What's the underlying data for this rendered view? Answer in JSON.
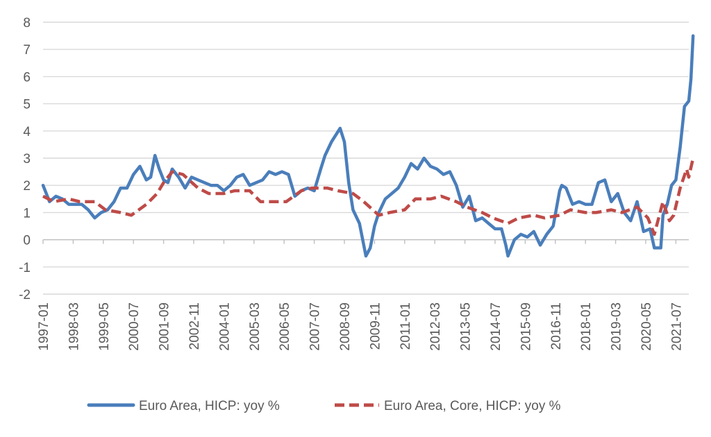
{
  "chart_data": {
    "type": "line",
    "ylim": [
      -2,
      8
    ],
    "yticks": [
      -2,
      -1,
      0,
      1,
      2,
      3,
      4,
      5,
      6,
      7,
      8
    ],
    "xlim": [
      "1997-01",
      "2022-01"
    ],
    "xticks": [
      "1997-01",
      "1998-03",
      "1999-05",
      "2000-07",
      "2001-09",
      "2002-11",
      "2004-01",
      "2005-03",
      "2006-05",
      "2007-07",
      "2008-09",
      "2009-11",
      "2011-01",
      "2012-03",
      "2013-05",
      "2014-07",
      "2015-09",
      "2016-11",
      "2018-01",
      "2019-03",
      "2020-05",
      "2021-07"
    ],
    "grid": true,
    "legend_position": "bottom",
    "series": [
      {
        "name": "Euro Area, HICP: yoy %",
        "color": "#4a7ebb",
        "dash": "solid",
        "points": [
          [
            "1997-01",
            2.0
          ],
          [
            "1997-04",
            1.4
          ],
          [
            "1997-07",
            1.6
          ],
          [
            "1997-10",
            1.5
          ],
          [
            "1998-01",
            1.3
          ],
          [
            "1998-04",
            1.3
          ],
          [
            "1998-07",
            1.3
          ],
          [
            "1998-10",
            1.1
          ],
          [
            "1999-01",
            0.8
          ],
          [
            "1999-04",
            1.0
          ],
          [
            "1999-07",
            1.1
          ],
          [
            "1999-10",
            1.4
          ],
          [
            "2000-01",
            1.9
          ],
          [
            "2000-04",
            1.9
          ],
          [
            "2000-07",
            2.4
          ],
          [
            "2000-10",
            2.7
          ],
          [
            "2001-01",
            2.2
          ],
          [
            "2001-03",
            2.3
          ],
          [
            "2001-05",
            3.1
          ],
          [
            "2001-07",
            2.6
          ],
          [
            "2001-09",
            2.2
          ],
          [
            "2001-11",
            2.1
          ],
          [
            "2002-01",
            2.6
          ],
          [
            "2002-04",
            2.3
          ],
          [
            "2002-07",
            1.9
          ],
          [
            "2002-10",
            2.3
          ],
          [
            "2003-01",
            2.2
          ],
          [
            "2003-04",
            2.1
          ],
          [
            "2003-07",
            2.0
          ],
          [
            "2003-10",
            2.0
          ],
          [
            "2004-01",
            1.8
          ],
          [
            "2004-04",
            2.0
          ],
          [
            "2004-07",
            2.3
          ],
          [
            "2004-10",
            2.4
          ],
          [
            "2005-01",
            2.0
          ],
          [
            "2005-04",
            2.1
          ],
          [
            "2005-07",
            2.2
          ],
          [
            "2005-10",
            2.5
          ],
          [
            "2006-01",
            2.4
          ],
          [
            "2006-04",
            2.5
          ],
          [
            "2006-07",
            2.4
          ],
          [
            "2006-10",
            1.6
          ],
          [
            "2007-01",
            1.8
          ],
          [
            "2007-04",
            1.9
          ],
          [
            "2007-07",
            1.8
          ],
          [
            "2007-10",
            2.6
          ],
          [
            "2007-12",
            3.1
          ],
          [
            "2008-03",
            3.6
          ],
          [
            "2008-07",
            4.1
          ],
          [
            "2008-09",
            3.6
          ],
          [
            "2008-11",
            2.1
          ],
          [
            "2009-01",
            1.1
          ],
          [
            "2009-04",
            0.6
          ],
          [
            "2009-07",
            -0.6
          ],
          [
            "2009-09",
            -0.3
          ],
          [
            "2009-11",
            0.5
          ],
          [
            "2010-01",
            1.0
          ],
          [
            "2010-04",
            1.5
          ],
          [
            "2010-07",
            1.7
          ],
          [
            "2010-10",
            1.9
          ],
          [
            "2011-01",
            2.3
          ],
          [
            "2011-04",
            2.8
          ],
          [
            "2011-07",
            2.6
          ],
          [
            "2011-10",
            3.0
          ],
          [
            "2012-01",
            2.7
          ],
          [
            "2012-04",
            2.6
          ],
          [
            "2012-07",
            2.4
          ],
          [
            "2012-10",
            2.5
          ],
          [
            "2013-01",
            2.0
          ],
          [
            "2013-04",
            1.2
          ],
          [
            "2013-07",
            1.6
          ],
          [
            "2013-10",
            0.7
          ],
          [
            "2014-01",
            0.8
          ],
          [
            "2014-04",
            0.6
          ],
          [
            "2014-07",
            0.4
          ],
          [
            "2014-10",
            0.4
          ],
          [
            "2014-12",
            -0.2
          ],
          [
            "2015-01",
            -0.6
          ],
          [
            "2015-04",
            0.0
          ],
          [
            "2015-07",
            0.2
          ],
          [
            "2015-10",
            0.1
          ],
          [
            "2016-01",
            0.3
          ],
          [
            "2016-04",
            -0.2
          ],
          [
            "2016-07",
            0.2
          ],
          [
            "2016-10",
            0.5
          ],
          [
            "2017-01",
            1.8
          ],
          [
            "2017-02",
            2.0
          ],
          [
            "2017-04",
            1.9
          ],
          [
            "2017-07",
            1.3
          ],
          [
            "2017-10",
            1.4
          ],
          [
            "2018-01",
            1.3
          ],
          [
            "2018-04",
            1.3
          ],
          [
            "2018-07",
            2.1
          ],
          [
            "2018-10",
            2.2
          ],
          [
            "2019-01",
            1.4
          ],
          [
            "2019-04",
            1.7
          ],
          [
            "2019-07",
            1.0
          ],
          [
            "2019-10",
            0.7
          ],
          [
            "2020-01",
            1.4
          ],
          [
            "2020-04",
            0.3
          ],
          [
            "2020-07",
            0.4
          ],
          [
            "2020-09",
            -0.3
          ],
          [
            "2020-12",
            -0.3
          ],
          [
            "2021-01",
            0.9
          ],
          [
            "2021-03",
            1.3
          ],
          [
            "2021-05",
            2.0
          ],
          [
            "2021-07",
            2.2
          ],
          [
            "2021-09",
            3.4
          ],
          [
            "2021-11",
            4.9
          ],
          [
            "2021-12",
            5.0
          ],
          [
            "2022-01",
            5.1
          ],
          [
            "2022-02",
            5.9
          ],
          [
            "2022-03",
            7.5
          ]
        ]
      },
      {
        "name": "Euro Area, Core, HICP: yoy %",
        "color": "#be4b48",
        "dash": "dashed",
        "points": [
          [
            "1997-01",
            1.6
          ],
          [
            "1997-06",
            1.4
          ],
          [
            "1998-01",
            1.5
          ],
          [
            "1998-06",
            1.4
          ],
          [
            "1999-01",
            1.4
          ],
          [
            "1999-06",
            1.1
          ],
          [
            "2000-01",
            1.0
          ],
          [
            "2000-06",
            0.9
          ],
          [
            "2001-01",
            1.3
          ],
          [
            "2001-06",
            1.7
          ],
          [
            "2001-09",
            2.1
          ],
          [
            "2002-01",
            2.5
          ],
          [
            "2002-06",
            2.4
          ],
          [
            "2003-01",
            1.9
          ],
          [
            "2003-06",
            1.7
          ],
          [
            "2004-01",
            1.7
          ],
          [
            "2004-06",
            1.8
          ],
          [
            "2005-01",
            1.8
          ],
          [
            "2005-06",
            1.4
          ],
          [
            "2006-01",
            1.4
          ],
          [
            "2006-06",
            1.4
          ],
          [
            "2007-01",
            1.8
          ],
          [
            "2007-06",
            1.9
          ],
          [
            "2008-01",
            1.9
          ],
          [
            "2008-06",
            1.8
          ],
          [
            "2009-01",
            1.7
          ],
          [
            "2009-06",
            1.4
          ],
          [
            "2010-01",
            0.9
          ],
          [
            "2010-06",
            1.0
          ],
          [
            "2011-01",
            1.1
          ],
          [
            "2011-06",
            1.5
          ],
          [
            "2012-01",
            1.5
          ],
          [
            "2012-06",
            1.6
          ],
          [
            "2013-01",
            1.4
          ],
          [
            "2013-06",
            1.2
          ],
          [
            "2014-01",
            1.0
          ],
          [
            "2014-06",
            0.8
          ],
          [
            "2015-01",
            0.6
          ],
          [
            "2015-06",
            0.8
          ],
          [
            "2016-01",
            0.9
          ],
          [
            "2016-06",
            0.8
          ],
          [
            "2017-01",
            0.9
          ],
          [
            "2017-06",
            1.1
          ],
          [
            "2018-01",
            1.0
          ],
          [
            "2018-06",
            1.0
          ],
          [
            "2019-01",
            1.1
          ],
          [
            "2019-06",
            1.0
          ],
          [
            "2020-01",
            1.2
          ],
          [
            "2020-06",
            0.8
          ],
          [
            "2020-09",
            0.2
          ],
          [
            "2021-01",
            1.4
          ],
          [
            "2021-04",
            0.7
          ],
          [
            "2021-06",
            0.9
          ],
          [
            "2021-09",
            1.9
          ],
          [
            "2021-12",
            2.6
          ],
          [
            "2022-01",
            2.3
          ],
          [
            "2022-03",
            3.0
          ]
        ]
      }
    ]
  }
}
